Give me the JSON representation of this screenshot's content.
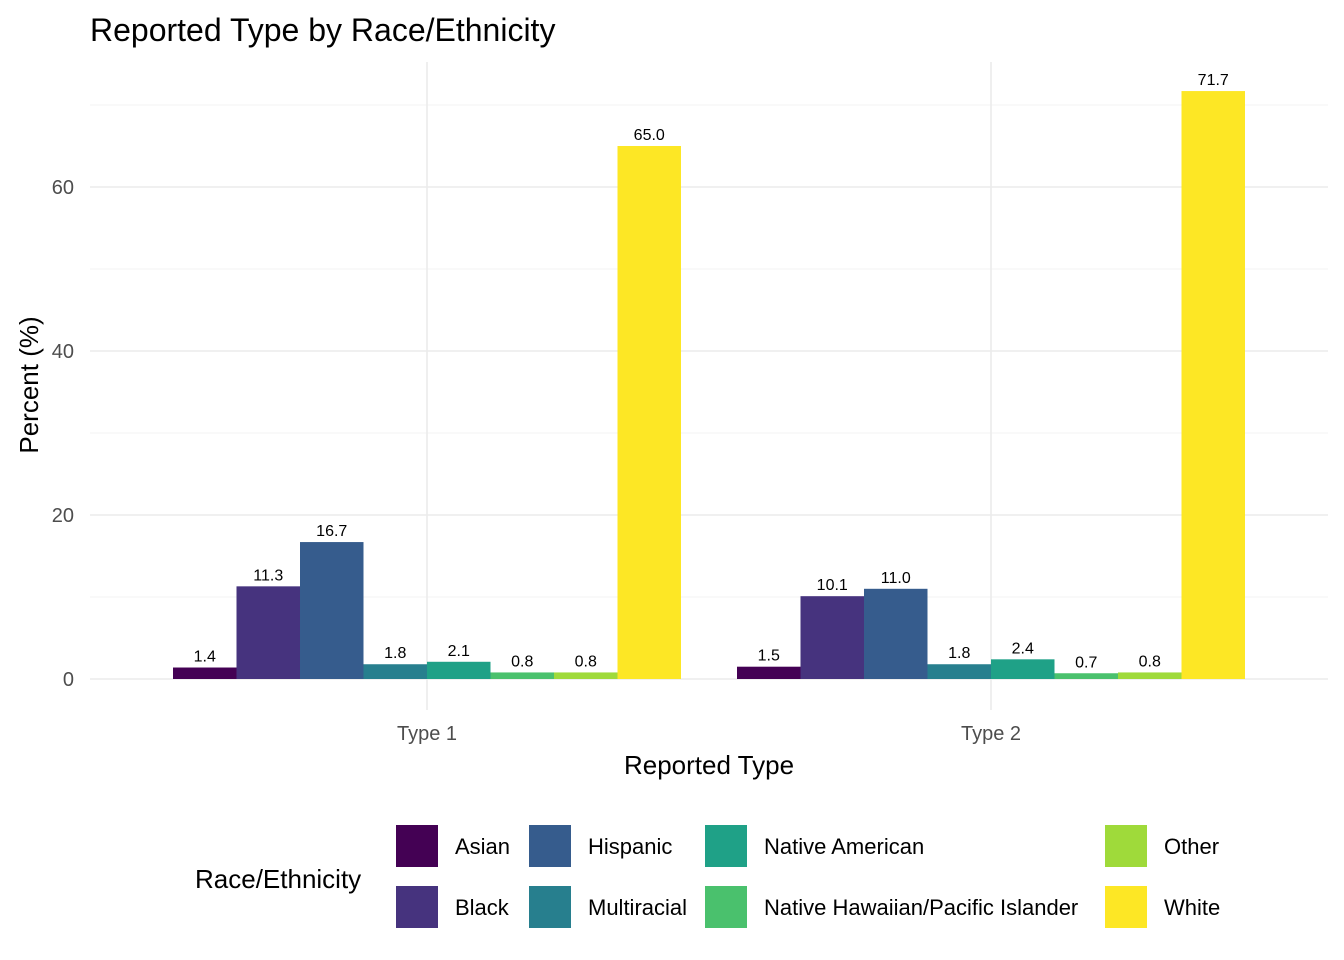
{
  "chart_data": {
    "type": "bar",
    "title": "Reported Type by Race/Ethnicity",
    "xlabel": "Reported Type",
    "ylabel": "Percent (%)",
    "categories": [
      "Type 1",
      "Type 2"
    ],
    "ylim": [
      0,
      72
    ],
    "yticks": [
      0,
      20,
      40,
      60
    ],
    "grid": true,
    "legend_position": "bottom",
    "legend_title": "Race/Ethnicity",
    "series": [
      {
        "name": "Asian",
        "color": "#440154",
        "values": [
          1.4,
          1.5
        ],
        "labels": [
          "1.4",
          "1.5"
        ]
      },
      {
        "name": "Black",
        "color": "#46337E",
        "values": [
          11.3,
          10.1
        ],
        "labels": [
          "11.3",
          "10.1"
        ]
      },
      {
        "name": "Hispanic",
        "color": "#365C8D",
        "values": [
          16.7,
          11.0
        ],
        "labels": [
          "16.7",
          "11.0"
        ]
      },
      {
        "name": "Multiracial",
        "color": "#277F8E",
        "values": [
          1.8,
          1.8
        ],
        "labels": [
          "1.8",
          "1.8"
        ]
      },
      {
        "name": "Native American",
        "color": "#1FA187",
        "values": [
          2.1,
          2.4
        ],
        "labels": [
          "2.1",
          "2.4"
        ]
      },
      {
        "name": "Native Hawaiian/Pacific Islander",
        "color": "#4AC16D",
        "values": [
          0.8,
          0.7
        ],
        "labels": [
          "0.8",
          "0.7"
        ]
      },
      {
        "name": "Other",
        "color": "#9FDA3A",
        "values": [
          0.8,
          0.8
        ],
        "labels": [
          "0.8",
          "0.8"
        ]
      },
      {
        "name": "White",
        "color": "#FDE725",
        "values": [
          65.0,
          71.7
        ],
        "labels": [
          "65.0",
          "71.7"
        ]
      }
    ]
  }
}
